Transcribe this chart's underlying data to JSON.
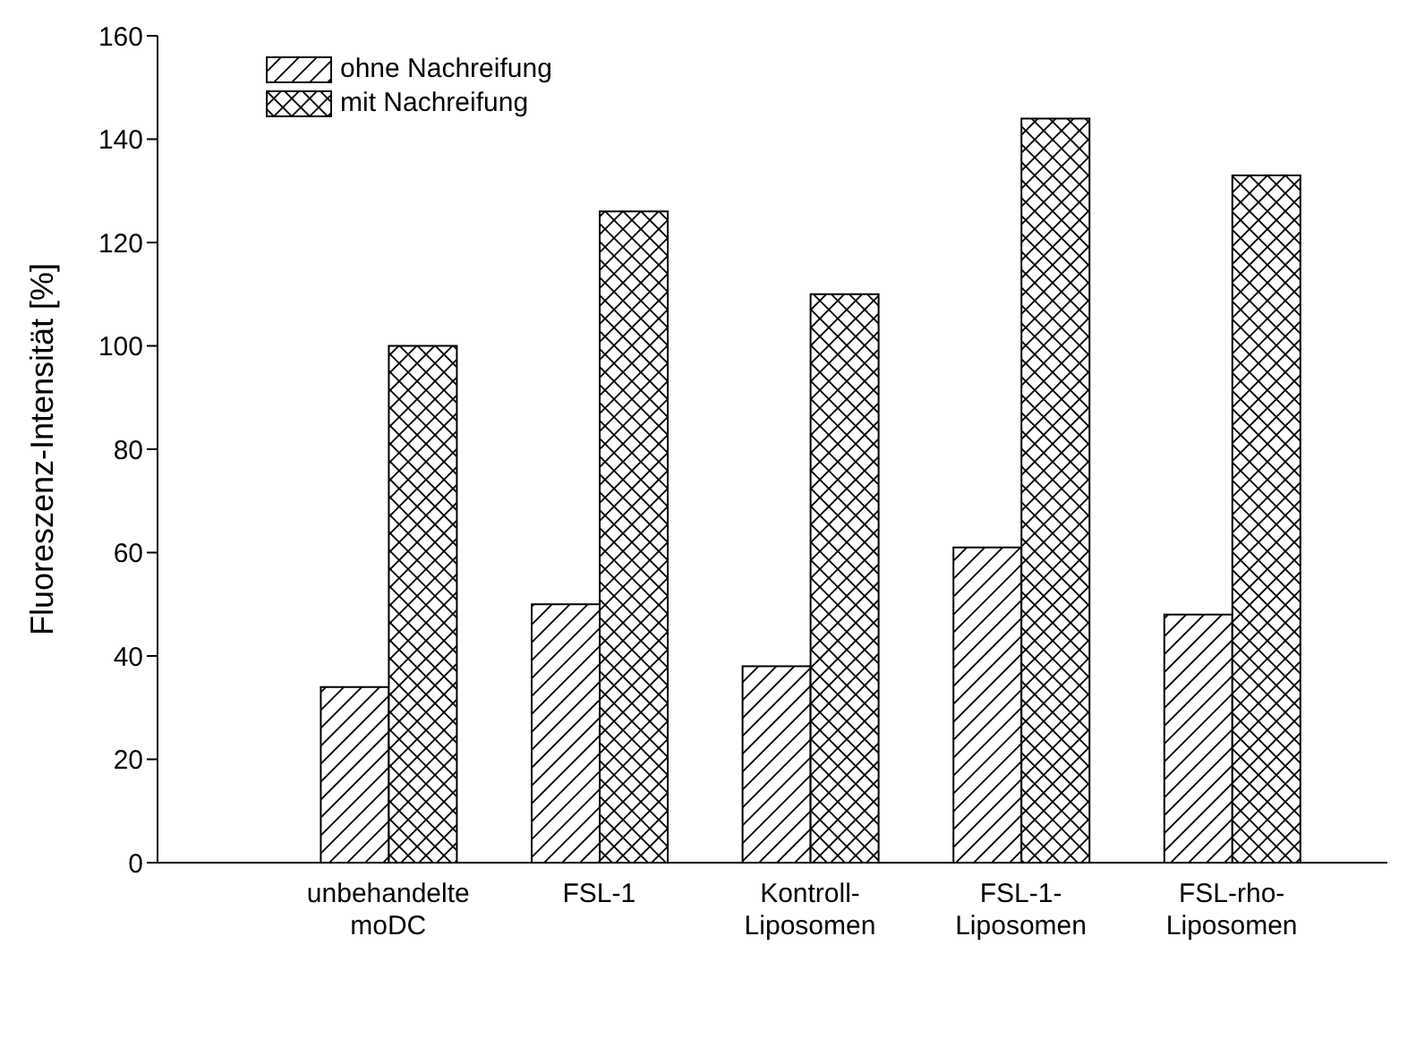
{
  "chart_data": {
    "type": "bar",
    "ylabel": "Fluoreszenz-Intensität [%]",
    "categories": [
      "unbehandelte\nmoDC",
      "FSL-1",
      "Kontroll-\nLiposomen",
      "FSL-1-\nLiposomen",
      "FSL-rho-\nLiposomen"
    ],
    "series": [
      {
        "name": "ohne Nachreifung",
        "color": "#000000",
        "values": [
          34,
          50,
          38,
          61,
          48
        ]
      },
      {
        "name": "mit Nachreifung",
        "color": "#000000",
        "values": [
          100,
          126,
          110,
          144,
          133
        ]
      }
    ],
    "ylim": [
      0,
      160
    ],
    "yticks": [
      0,
      20,
      40,
      60,
      80,
      100,
      120,
      140,
      160
    ],
    "grid": false,
    "legend": "top left"
  }
}
